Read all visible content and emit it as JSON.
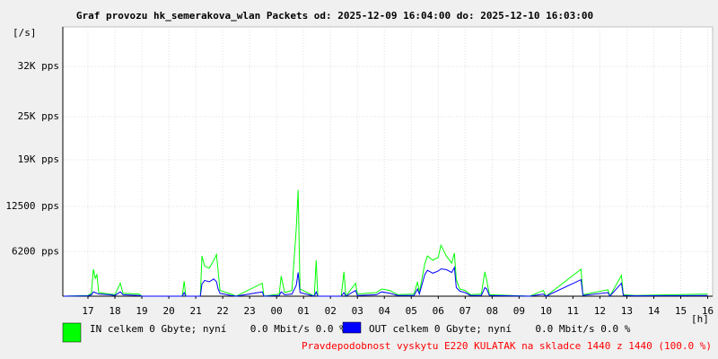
{
  "chart_data": {
    "type": "line",
    "title": "Graf provozu hk_semerakova_wlan Packets od: 2025-12-09 16:04:00 do: 2025-12-10 16:03:00",
    "y_label": "[/s]",
    "x_label": "[h]",
    "annotation": "Pravdepodobnost vyskytu E220 KULATAK na skladce 1440 z 1440 (100.0 %)",
    "grid": true,
    "xlim": [
      16.0667,
      40.05
    ],
    "xticks": [
      17,
      18,
      19,
      20,
      21,
      22,
      23,
      {
        "value": 24,
        "label": "00"
      },
      {
        "value": 25,
        "label": "01"
      },
      {
        "value": 26,
        "label": "02"
      },
      {
        "value": 27,
        "label": "03"
      },
      {
        "value": 28,
        "label": "04"
      },
      {
        "value": 29,
        "label": "05"
      },
      {
        "value": 30,
        "label": "06"
      },
      {
        "value": 31,
        "label": "07"
      },
      {
        "value": 32,
        "label": "08"
      },
      {
        "value": 33,
        "label": "09"
      },
      {
        "value": 34,
        "label": "10"
      },
      {
        "value": 35,
        "label": "11"
      },
      {
        "value": 36,
        "label": "12"
      },
      {
        "value": 37,
        "label": "13"
      },
      {
        "value": 38,
        "label": "14"
      },
      {
        "value": 39,
        "label": "15"
      },
      {
        "value": 40,
        "label": "16"
      }
    ],
    "ylim": [
      0,
      37500
    ],
    "yticks": [
      {
        "value": 6200,
        "label": "6200 pps"
      },
      {
        "value": 12500,
        "label": "12500 pps"
      },
      {
        "value": 19000,
        "label": "19K pps"
      },
      {
        "value": 25000,
        "label": "25K pps"
      },
      {
        "value": 32000,
        "label": "32K pps"
      }
    ],
    "x": [
      16.1,
      17.0,
      17.13,
      17.2,
      17.27,
      17.33,
      17.4,
      17.8,
      18.0,
      18.2,
      18.3,
      18.9,
      19.0,
      20.5,
      20.57,
      20.63,
      21.17,
      21.23,
      21.33,
      21.5,
      21.67,
      21.77,
      21.83,
      21.9,
      22.3,
      22.5,
      23.47,
      23.53,
      24.1,
      24.17,
      24.3,
      24.57,
      24.73,
      24.8,
      24.87,
      25.4,
      25.47,
      25.53,
      26.4,
      26.5,
      26.57,
      26.93,
      27.0,
      27.7,
      27.9,
      28.2,
      28.5,
      29.1,
      29.23,
      29.3,
      29.5,
      29.6,
      29.8,
      30.0,
      30.1,
      30.3,
      30.5,
      30.6,
      30.67,
      30.8,
      31.0,
      31.2,
      31.6,
      31.73,
      31.8,
      31.9,
      33.4,
      33.9,
      34.0,
      35.3,
      35.37,
      36.3,
      36.37,
      36.8,
      36.87,
      37.3,
      40.0
    ],
    "series": [
      {
        "name": "IN celkem 0 Gbyte; nyní    0.0 Mbit/s 0.0 %",
        "color": "#00ff00",
        "values": [
          0,
          100,
          400,
          3750,
          2500,
          3000,
          500,
          300,
          200,
          1800,
          400,
          300,
          0,
          0,
          2100,
          0,
          0,
          5600,
          4200,
          3900,
          5000,
          5800,
          3500,
          800,
          300,
          0,
          1800,
          0,
          300,
          2800,
          500,
          800,
          9400,
          14800,
          1000,
          0,
          5000,
          0,
          0,
          3400,
          0,
          1800,
          300,
          500,
          1000,
          800,
          200,
          300,
          2000,
          500,
          4500,
          5600,
          5000,
          5400,
          7100,
          5600,
          4600,
          6000,
          2300,
          1000,
          800,
          200,
          300,
          3400,
          2200,
          200,
          0,
          800,
          0,
          3750,
          200,
          900,
          0,
          2900,
          200,
          100,
          300
        ]
      },
      {
        "name": "OUT celkem 0 Gbyte; nyní    0.0 Mbit/s 0.0 %",
        "color": "#0000ff",
        "values": [
          0,
          50,
          200,
          600,
          500,
          400,
          300,
          200,
          100,
          600,
          200,
          100,
          0,
          0,
          500,
          0,
          0,
          1700,
          2200,
          2000,
          2400,
          2000,
          1000,
          400,
          100,
          0,
          600,
          0,
          100,
          600,
          200,
          300,
          1500,
          3300,
          500,
          0,
          600,
          0,
          0,
          500,
          0,
          800,
          100,
          200,
          600,
          400,
          100,
          100,
          1000,
          300,
          3000,
          3600,
          3200,
          3500,
          3800,
          3700,
          3300,
          4000,
          1200,
          700,
          500,
          100,
          100,
          1200,
          1000,
          100,
          0,
          300,
          0,
          2300,
          100,
          500,
          0,
          1800,
          100,
          50,
          100
        ]
      }
    ]
  }
}
